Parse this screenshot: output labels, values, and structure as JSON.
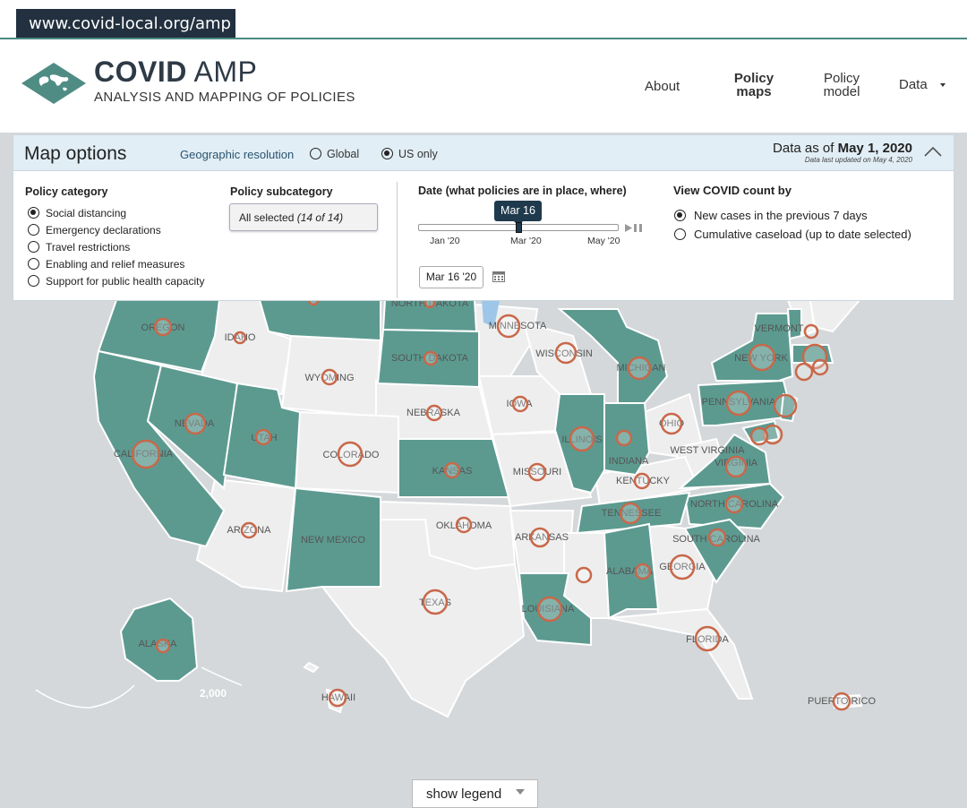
{
  "browser": {
    "url": "www.covid-local.org/amp"
  },
  "brand": {
    "title_bold": "COVID",
    "title_light": " AMP",
    "subtitle": "ANALYSIS AND MAPPING OF POLICIES"
  },
  "nav": {
    "about": "About",
    "policy_maps_1": "Policy",
    "policy_maps_2": "maps",
    "policy_model_1": "Policy",
    "policy_model_2": "model",
    "data": "Data"
  },
  "map_options": {
    "title": "Map options",
    "geo_label": "Geographic resolution",
    "geo_options": [
      "Global",
      "US only"
    ],
    "geo_selected": "US only",
    "data_as_of_prefix": "Data as of ",
    "data_as_of_date": "May 1, 2020",
    "last_updated": "Data last updated on May 4, 2020",
    "policy_category_label": "Policy category",
    "categories": [
      "Social distancing",
      "Emergency declarations",
      "Travel restrictions",
      "Enabling and relief measures",
      "Support for public health capacity"
    ],
    "category_selected": "Social distancing",
    "subcategory_label": "Policy subcategory",
    "subcategory_value": "All selected",
    "subcategory_count": "(14 of 14)",
    "date_label": "Date (what policies are in place, where)",
    "slider_tooltip": "Mar 16",
    "slider_ticks": [
      "Jan '20",
      "Mar '20",
      "May '20"
    ],
    "date_field": "Mar 16 '20",
    "count_label": "View COVID count by",
    "count_options": [
      "New cases in the previous 7 days",
      "Cumulative caseload (up to date selected)"
    ],
    "count_selected": "New cases in the previous 7 days"
  },
  "map": {
    "colors": {
      "policy": "#5c9a90",
      "no_policy": "#eeeeee",
      "background": "#d4d8da",
      "bubble": "#c8684a"
    },
    "labels": [
      "OREGON",
      "IDAHO",
      "NORTH DAKOTA",
      "MINNESOTA",
      "WISCONSIN",
      "MICHIGAN",
      "SOUTH DAKOTA",
      "WYOMING",
      "NEVADA",
      "UTAH",
      "NEBRASKA",
      "IOWA",
      "ILLINOIS",
      "OHIO",
      "PENNSYLVANIA",
      "NEW YORK",
      "VERMONT",
      "CALIFORNIA",
      "COLORADO",
      "KANSAS",
      "MISSOURI",
      "INDIANA",
      "WEST VIRGINIA",
      "KENTUCKY",
      "VIRGINIA",
      "NORTH CAROLINA",
      "TENNESSEE",
      "ARIZONA",
      "NEW MEXICO",
      "OKLAHOMA",
      "ARKANSAS",
      "SOUTH CAROLINA",
      "ALABAMA",
      "GEORGIA",
      "TEXAS",
      "LOUISIANA",
      "FLORIDA",
      "ALASKA",
      "HAWAII",
      "PUERTO RICO"
    ],
    "scale_label": "2,000"
  },
  "legend": {
    "button": "show legend"
  }
}
